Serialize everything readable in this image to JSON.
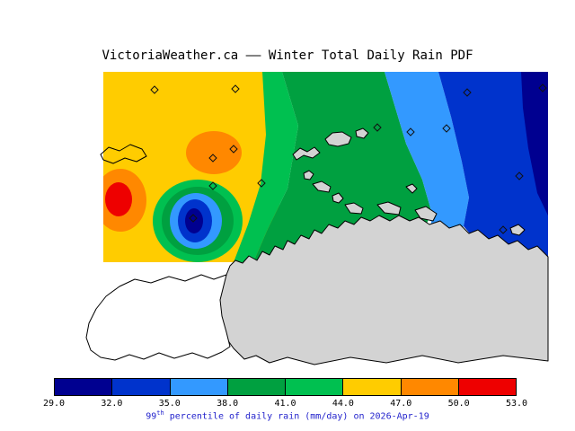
{
  "title": "VictoriaWeather.ca —— Winter Total Daily Rain PDF",
  "caption": {
    "num": "99",
    "sup": "th",
    "rest": " percentile of daily rain (mm/day) on 2026-Apr-19",
    "color": "#2222CC"
  },
  "colorbar": {
    "tick_labels": [
      "29.0",
      "32.0",
      "35.0",
      "38.0",
      "41.0",
      "44.0",
      "47.0",
      "50.0",
      "53.0"
    ],
    "colors": [
      "#000090",
      "#0033CC",
      "#3399FF",
      "#00A040",
      "#00C050",
      "#FFCC00",
      "#FF8800",
      "#EE0000"
    ]
  },
  "map": {
    "land_color": "#D3D3D3",
    "coast_color": "#000000",
    "sea_color": "#FFFFFF"
  },
  "chart_data": {
    "type": "heatmap",
    "title": "VictoriaWeather.ca —— Winter Total Daily Rain PDF",
    "variable": "99th percentile of daily rain",
    "units": "mm/day",
    "date": "2026-Apr-19",
    "levels": [
      29.0,
      32.0,
      35.0,
      38.0,
      41.0,
      44.0,
      47.0,
      50.0,
      53.0
    ],
    "band_colors": [
      "#000090",
      "#0033CC",
      "#3399FF",
      "#00A040",
      "#00C050",
      "#FFCC00",
      "#FF8800",
      "#EE0000"
    ],
    "legend_position": "bottom",
    "pattern_summary": "Filled-contour map of the Victoria BC / Juan de Fuca region: values peak at 50-53 mm/day in the west, a secondary 47-50 maximum lies inland, a closed 29-32 minimum sits just southwest of Victoria, and values decrease steadily eastward from 44 to 29-35 mm/day; land is shown in gray with station sites marked by diamonds.",
    "notable_features": [
      {
        "name": "western-maximum",
        "value": "50-53 mm/day",
        "map_xy": [
          133,
          222
        ]
      },
      {
        "name": "secondary-maximum",
        "value": "47-50 mm/day",
        "map_xy": [
          238,
          171
        ]
      },
      {
        "name": "victoria-minimum",
        "value": "29-32 mm/day",
        "map_xy": [
          216,
          246
        ]
      },
      {
        "name": "eastern-low",
        "value": "29-35 mm/day",
        "map_xy": [
          590,
          150
        ]
      }
    ],
    "stations": [
      [
        172,
        100
      ],
      [
        262,
        99
      ],
      [
        237,
        176
      ],
      [
        260,
        166
      ],
      [
        237,
        207
      ],
      [
        291,
        204
      ],
      [
        215,
        243
      ],
      [
        420,
        142
      ],
      [
        457,
        147
      ],
      [
        497,
        143
      ],
      [
        520,
        103
      ],
      [
        604,
        98
      ],
      [
        578,
        196
      ],
      [
        560,
        256
      ]
    ]
  }
}
